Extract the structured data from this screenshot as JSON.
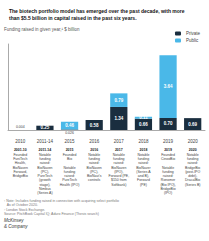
{
  "chart_data": {
    "type": "bar",
    "title": "The biotech portfolio model has emerged over the past decade, with more\nthan $5.5 billion in capital raised in the past six years.",
    "ylabel": "Funding raised in given year,¹ $ billion",
    "categories": [
      "2010",
      "2011-14",
      "2015",
      "2016",
      "2017",
      "2018",
      "2019",
      "2020"
    ],
    "series": [
      {
        "name": "Private",
        "color": "#1a2e3f",
        "values": [
          0.004,
          0.25,
          0.026,
          0.58,
          1.34,
          0.66,
          0.7,
          0.69
        ],
        "value_labels": [
          "0.004",
          "0.25",
          "0.026",
          "0.58",
          "1.34",
          "0.66",
          "0.70",
          "0.69"
        ]
      },
      {
        "name": "Public",
        "color": "#4ab8e8",
        "values": [
          0.0,
          0.0,
          0.46,
          0.0,
          0.79,
          0.11,
          3.64,
          0.0
        ],
        "value_labels": [
          null,
          null,
          "0.46",
          null,
          "0.79",
          "0.11",
          "3.64",
          null
        ]
      }
    ],
    "stacked": true,
    "data_labels": true,
    "ylim": [
      0,
      5
    ],
    "yticks": [],
    "tick_labels": "x",
    "grid": false,
    "legend": "upper right",
    "annotations": [
      {
        "header": "2001-10",
        "text": [
          "Founded",
          "FuniTech\nHealth,\nBioNaven\nForward,\nBridgeBio"
        ]
      },
      {
        "header": "2011-14",
        "text": [
          "Notable",
          "funding\nraised:\nBioNaven\n(PC),\nPureTech\n(growth\nstage),\nNimbus\n(Series A)"
        ]
      },
      {
        "header": "2015",
        "text": [
          "Founded",
          "Bio\n\nNotable\nfunding\nraised:\nPureTech\nHealth (IPO)"
        ]
      },
      {
        "header": "2016",
        "text": [
          "Notable",
          "funding\nraised:\nBioNaven\n(PC),\nBioNavi's\ncontrols"
        ]
      },
      {
        "header": "2017",
        "text": [
          "Notable",
          "funding\nraised:\nBioNaven\n(IPO),\nForward (PE,\n$150 from\nSoftbank)"
        ]
      },
      {
        "header": "2018",
        "text": [
          "Notable",
          "funding\nraised:\nBioNaver\n(Series A\nand B),\nForward\n(PE)"
        ]
      },
      {
        "header": "2019",
        "text": [
          "Founded",
          "CinooBio\n\nNotable\nfunding\nraised:\nRonomer\n(Bio IPO),\nBridgeBio\n(IPO)"
        ]
      },
      {
        "header": "2020",
        "text": [
          "Notable",
          "funding\nraised:\nBridgeBio\n(post-IPO\ndebt),\nDracalBio\n(Series B)"
        ]
      }
    ],
    "footnotes": [
      "¹ Note: Includes funding raised in connection with acquiring select portfolio",
      "   As of October 2020.",
      "² London Stock Exchange.",
      "Source: PitchBook Capital IQ; Aduro Finance (Thesis search)"
    ],
    "credit": "McKinsey\n& Company"
  }
}
